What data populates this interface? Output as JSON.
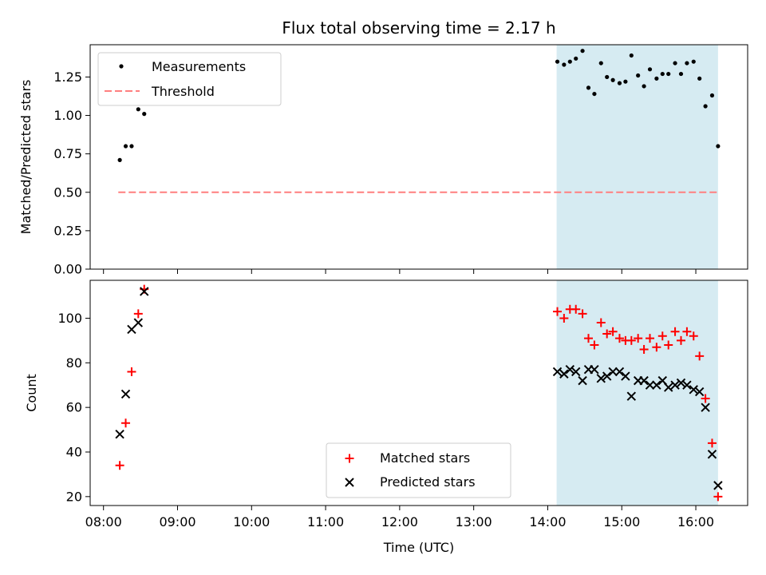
{
  "title": "Flux total observing time = 2.17 h",
  "colors": {
    "highlight": "#add8e6",
    "measurement": "#000000",
    "threshold": "#ff7f7f",
    "matched": "#ff0000",
    "predicted": "#000000"
  },
  "chart_data": [
    {
      "type": "scatter",
      "ylabel": "Matched/Predicted stars",
      "xlim": [
        7.82,
        16.7
      ],
      "ylim": [
        0.0,
        1.46
      ],
      "yticks": [
        "0.00",
        "0.25",
        "0.50",
        "0.75",
        "1.00",
        "1.25"
      ],
      "highlight_span": [
        14.12,
        16.3
      ],
      "legend": {
        "position": "upper-left",
        "entries": [
          "Measurements",
          "Threshold"
        ]
      },
      "threshold": {
        "name": "Threshold",
        "value": 0.5,
        "x_range": [
          8.2,
          16.3
        ]
      },
      "series": [
        {
          "name": "Measurements",
          "x": [
            8.22,
            8.3,
            8.38,
            8.47,
            8.55,
            14.13,
            14.22,
            14.3,
            14.38,
            14.47,
            14.55,
            14.63,
            14.72,
            14.8,
            14.88,
            14.97,
            15.05,
            15.13,
            15.22,
            15.3,
            15.38,
            15.47,
            15.55,
            15.63,
            15.72,
            15.8,
            15.88,
            15.97,
            16.05,
            16.13,
            16.22,
            16.3
          ],
          "y": [
            0.71,
            0.8,
            0.8,
            1.04,
            1.01,
            1.35,
            1.33,
            1.35,
            1.37,
            1.42,
            1.18,
            1.14,
            1.34,
            1.25,
            1.23,
            1.21,
            1.22,
            1.39,
            1.26,
            1.19,
            1.3,
            1.24,
            1.27,
            1.27,
            1.34,
            1.27,
            1.34,
            1.35,
            1.24,
            1.06,
            1.13,
            0.8
          ]
        }
      ]
    },
    {
      "type": "scatter",
      "ylabel": "Count",
      "xlabel": "Time (UTC)",
      "xlim": [
        7.82,
        16.7
      ],
      "ylim": [
        16,
        117
      ],
      "yticks": [
        "20",
        "40",
        "60",
        "80",
        "100"
      ],
      "xticks": [
        "08:00",
        "09:00",
        "10:00",
        "11:00",
        "12:00",
        "13:00",
        "14:00",
        "15:00",
        "16:00"
      ],
      "highlight_span": [
        14.12,
        16.3
      ],
      "legend": {
        "position": "lower-center",
        "entries": [
          "Matched stars",
          "Predicted stars"
        ]
      },
      "series": [
        {
          "name": "Matched stars",
          "marker": "+",
          "x": [
            8.22,
            8.3,
            8.38,
            8.47,
            8.55,
            14.13,
            14.22,
            14.3,
            14.38,
            14.47,
            14.55,
            14.63,
            14.72,
            14.8,
            14.88,
            14.97,
            15.05,
            15.13,
            15.22,
            15.3,
            15.38,
            15.47,
            15.55,
            15.63,
            15.72,
            15.8,
            15.88,
            15.97,
            16.05,
            16.13,
            16.22,
            16.3
          ],
          "y": [
            34,
            53,
            76,
            102,
            113,
            103,
            100,
            104,
            104,
            102,
            91,
            88,
            98,
            93,
            94,
            91,
            90,
            90,
            91,
            86,
            91,
            87,
            92,
            88,
            94,
            90,
            94,
            92,
            83,
            64,
            44,
            20
          ]
        },
        {
          "name": "Predicted stars",
          "marker": "x",
          "x": [
            8.22,
            8.3,
            8.38,
            8.47,
            8.55,
            14.13,
            14.22,
            14.3,
            14.38,
            14.47,
            14.55,
            14.63,
            14.72,
            14.8,
            14.88,
            14.97,
            15.05,
            15.13,
            15.22,
            15.3,
            15.38,
            15.47,
            15.55,
            15.63,
            15.72,
            15.8,
            15.88,
            15.97,
            16.05,
            16.13,
            16.22,
            16.3
          ],
          "y": [
            48,
            66,
            95,
            98,
            112,
            76,
            75,
            77,
            76,
            72,
            77,
            77,
            73,
            74,
            76,
            76,
            74,
            65,
            72,
            72,
            70,
            70,
            72,
            69,
            70,
            71,
            70,
            68,
            67,
            60,
            39,
            25
          ]
        }
      ]
    }
  ]
}
